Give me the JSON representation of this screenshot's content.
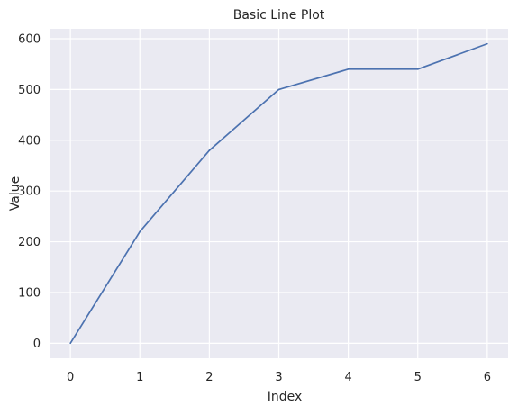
{
  "chart_data": {
    "type": "line",
    "title": "Basic Line Plot",
    "xlabel": "Index",
    "ylabel": "Value",
    "x": [
      0,
      1,
      2,
      3,
      4,
      5,
      6
    ],
    "series": [
      {
        "values": [
          0,
          220,
          380,
          500,
          540,
          540,
          590
        ]
      }
    ],
    "xlim": [
      -0.3,
      6.3
    ],
    "ylim": [
      -29.5,
      619.5
    ],
    "xticks": [
      0,
      1,
      2,
      3,
      4,
      5,
      6
    ],
    "yticks": [
      0,
      100,
      200,
      300,
      400,
      500,
      600
    ],
    "grid": true,
    "colors": {
      "background": "#eaeaf2",
      "grid": "#ffffff",
      "line": "#4c72b0"
    }
  }
}
